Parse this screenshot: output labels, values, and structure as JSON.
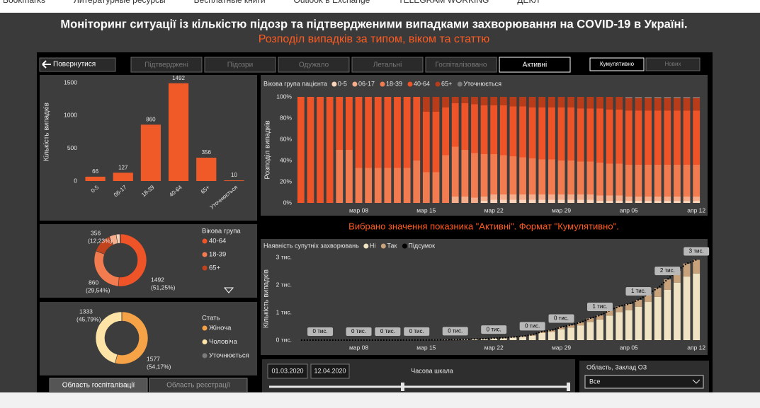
{
  "browser": {
    "bookmarks": [
      "Bookmarks",
      "Литературные ресурсы",
      "Бесплатные книги",
      "Outlook в Exchange",
      "TELEGRAM WORKING",
      "ДЕКЛ"
    ]
  },
  "header": {
    "title": "Моніторинг ситуації із кількістю підозр та підтвердженими випадками захворювання на COVID-19 в Україні.",
    "subtitle": "Розподіл випадків за типом, віком та статтю"
  },
  "nav": {
    "back": "Повернутися",
    "tabs": [
      "Підтверджені",
      "Підозри",
      "Одужало",
      "Летальні",
      "Госпіталізовано",
      "Активні"
    ],
    "active_tab": 5,
    "modes": [
      "Кумулятивно",
      "Нових"
    ],
    "active_mode": 0
  },
  "chart_data": [
    {
      "type": "bar",
      "y_label": "Кількість випадків",
      "categories": [
        "0-5",
        "06-17",
        "18-39",
        "40-64",
        "65+",
        "Уточнюється"
      ],
      "values": [
        66,
        127,
        860,
        1492,
        356,
        10
      ],
      "color": "#f05a28",
      "ylim": [
        0,
        1500
      ],
      "yticks": [
        0,
        500,
        1000,
        1500
      ],
      "grid": false
    },
    {
      "type": "donut",
      "legend_title": "Вікова група",
      "categories": [
        "40-64",
        "18-39",
        "65+",
        null,
        null,
        null
      ],
      "values": [
        1492,
        860,
        356,
        127,
        66,
        10
      ],
      "colors": [
        "#ee5427",
        "#f27c50",
        "#c0431d",
        "#f6ad8b",
        "#fbd3b9",
        "#8a8a8a"
      ],
      "percent_labels": [
        "(51,25%)",
        "(29,54%)",
        "(12,23%)",
        null,
        null,
        null
      ]
    },
    {
      "type": "donut",
      "legend_title": "Стать",
      "categories": [
        "Жіноча",
        "Чоловіча",
        "Уточнюється"
      ],
      "values": [
        1577,
        1333,
        1
      ],
      "colors": [
        "#f6a347",
        "#fde3a6",
        "#7a7a7a"
      ],
      "percent_labels": [
        "(54,17%)",
        "(45,79%)",
        null
      ]
    },
    {
      "type": "bar",
      "stacked": true,
      "legend_title": "Вікова група пацієнта",
      "y_label": "Розподіл випадків",
      "categories": [
        null,
        null,
        null,
        null,
        null,
        null,
        "мар 08",
        null,
        null,
        null,
        null,
        null,
        null,
        "мар 15",
        null,
        null,
        null,
        null,
        null,
        null,
        "мар 22",
        null,
        null,
        null,
        null,
        null,
        null,
        "мар 29",
        null,
        null,
        null,
        null,
        null,
        null,
        "апр 05",
        null,
        null,
        null,
        null,
        null,
        null,
        "апр 12"
      ],
      "series": [
        {
          "name": "0-5",
          "color": "#fbd3b9",
          "values": [
            0,
            0,
            0,
            0,
            0,
            0,
            0,
            0,
            0,
            0,
            0,
            0,
            0,
            0,
            0,
            0,
            0,
            0,
            0,
            2,
            3,
            3,
            3,
            3,
            3,
            3,
            3,
            3,
            3,
            3,
            3,
            2,
            2,
            2,
            2,
            2,
            2,
            2,
            2,
            2,
            2,
            2
          ]
        },
        {
          "name": "06-17",
          "color": "#f6ad8b",
          "values": [
            0,
            0,
            0,
            0,
            0,
            0,
            0,
            0,
            0,
            0,
            0,
            0,
            0,
            0,
            0,
            0,
            6,
            6,
            5,
            4,
            5,
            5,
            5,
            5,
            5,
            5,
            5,
            5,
            5,
            5,
            5,
            5,
            5,
            5,
            4,
            4,
            4,
            4,
            4,
            4,
            4,
            4
          ]
        },
        {
          "name": "18-39",
          "color": "#f27c50",
          "values": [
            0,
            0,
            0,
            0,
            50,
            50,
            33,
            33,
            33,
            33,
            33,
            33,
            40,
            29,
            29,
            45,
            47,
            44,
            42,
            40,
            38,
            37,
            36,
            35,
            34,
            33,
            33,
            32,
            32,
            31,
            31,
            31,
            30,
            30,
            30,
            30,
            30,
            30,
            30,
            30,
            30,
            30
          ]
        },
        {
          "name": "40-64",
          "color": "#ee5427",
          "values": [
            100,
            100,
            100,
            100,
            50,
            50,
            67,
            67,
            67,
            67,
            67,
            67,
            60,
            57,
            57,
            45,
            41,
            44,
            46,
            46,
            46,
            47,
            47,
            48,
            48,
            49,
            49,
            50,
            50,
            50,
            50,
            51,
            51,
            51,
            51,
            51,
            51,
            51,
            51,
            51,
            51,
            51
          ]
        },
        {
          "name": "65+",
          "color": "#b83c1a",
          "values": [
            0,
            0,
            0,
            0,
            0,
            0,
            0,
            0,
            0,
            0,
            0,
            0,
            0,
            14,
            14,
            10,
            6,
            6,
            7,
            8,
            8,
            8,
            9,
            9,
            10,
            10,
            10,
            10,
            10,
            11,
            11,
            11,
            12,
            12,
            12,
            12,
            12,
            12,
            12,
            12,
            12,
            12
          ]
        },
        {
          "name": "Уточнюється",
          "color": "#7a7a7a",
          "values": [
            0,
            0,
            0,
            0,
            0,
            0,
            0,
            0,
            0,
            0,
            0,
            0,
            0,
            0,
            0,
            0,
            0,
            0,
            0,
            0,
            0,
            0,
            0,
            0,
            0,
            0,
            0,
            0,
            0,
            0,
            0,
            0,
            0,
            0,
            1,
            1,
            1,
            1,
            1,
            1,
            1,
            1
          ]
        }
      ],
      "ylim": [
        0,
        100
      ],
      "yticks": [
        {
          "value": 0,
          "label": "0%"
        },
        {
          "value": 20,
          "label": "20%"
        },
        {
          "value": 40,
          "label": "40%"
        },
        {
          "value": 60,
          "label": "60%"
        },
        {
          "value": 80,
          "label": "80%"
        },
        {
          "value": 100,
          "label": "100%"
        }
      ],
      "grid": false
    },
    {
      "type": "bar",
      "stacked": true,
      "legend_title": "Наявність супутніх захворювань",
      "y_label": "Кількість випадків",
      "categories": [
        null,
        null,
        null,
        null,
        null,
        null,
        "мар 08",
        null,
        null,
        null,
        null,
        null,
        null,
        "мар 15",
        null,
        null,
        null,
        null,
        null,
        null,
        "мар 22",
        null,
        null,
        null,
        null,
        null,
        null,
        "мар 29",
        null,
        null,
        null,
        null,
        null,
        null,
        "апр 05",
        null,
        null,
        null,
        null,
        null,
        null,
        "апр 12"
      ],
      "series": [
        {
          "name": "Ні",
          "color": "#efe3c4",
          "values": [
            1,
            1,
            1,
            1,
            1,
            1,
            1,
            1,
            1,
            1,
            1,
            2,
            2,
            2,
            6,
            12,
            13,
            22,
            34,
            39,
            61,
            70,
            94,
            120,
            163,
            257,
            295,
            394,
            455,
            535,
            659,
            745,
            890,
            1017,
            1086,
            1213,
            1384,
            1570,
            1828,
            2084,
            2305,
            2416
          ]
        },
        {
          "name": "Так",
          "color": "#c8a27a",
          "values": [
            0,
            0,
            0,
            0,
            0,
            0,
            0,
            0,
            0,
            0,
            0,
            1,
            1,
            1,
            1,
            2,
            3,
            4,
            7,
            8,
            12,
            14,
            19,
            25,
            33,
            53,
            61,
            81,
            93,
            110,
            135,
            152,
            182,
            208,
            222,
            249,
            284,
            322,
            375,
            427,
            472,
            495
          ]
        },
        {
          "name": "Підсумок",
          "type": "line",
          "style": "dotted",
          "color": "#000000",
          "values": [
            1,
            1,
            1,
            1,
            1,
            1,
            1,
            1,
            1,
            1,
            1,
            3,
            3,
            3,
            7,
            14,
            16,
            26,
            41,
            47,
            73,
            84,
            113,
            145,
            196,
            310,
            356,
            475,
            548,
            645,
            794,
            897,
            1072,
            1225,
            1308,
            1462,
            1668,
            1892,
            2203,
            2511,
            2777,
            2911
          ],
          "value_labels": [
            null,
            null,
            "0 тис.",
            null,
            null,
            null,
            "0 тис.",
            null,
            null,
            "0 тис.",
            null,
            null,
            "0 тис.",
            null,
            null,
            null,
            "0 тис.",
            null,
            null,
            null,
            "0 тис.",
            null,
            null,
            null,
            "0 тис.",
            null,
            null,
            "0 тис.",
            null,
            null,
            null,
            "1 тис.",
            null,
            null,
            null,
            "1 тис.",
            null,
            null,
            "2 тис.",
            null,
            null,
            "3 тис."
          ]
        }
      ],
      "ylim": [
        0,
        3000
      ],
      "yticks": [
        {
          "value": 0,
          "label": "0 тис."
        },
        {
          "value": 1000,
          "label": "1 тис."
        },
        {
          "value": 2000,
          "label": "2 тис."
        },
        {
          "value": 3000,
          "label": "3 тис."
        }
      ],
      "grid": false
    }
  ],
  "note": "Вибрано значення показника \"Активні\". Формат \"Кумулятивно\".",
  "timeline": {
    "start": "01.03.2020",
    "end": "12.04.2020",
    "label": "Часова шкала"
  },
  "filter": {
    "label": "Область, Заклад ОЗ",
    "value": "Все"
  },
  "map_tabs": [
    "Область госпіталізації",
    "Область реєстрації"
  ]
}
